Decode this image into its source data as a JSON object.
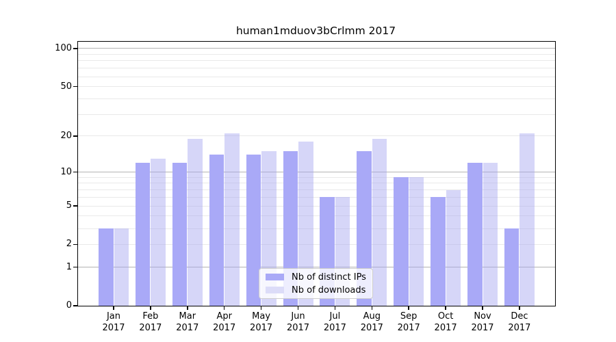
{
  "chart_data": {
    "type": "bar",
    "title": "human1mduov3bCrlmm 2017",
    "categories": [
      "Jan",
      "Feb",
      "Mar",
      "Apr",
      "May",
      "Jun",
      "Jul",
      "Aug",
      "Sep",
      "Oct",
      "Nov",
      "Dec"
    ],
    "year": "2017",
    "series": [
      {
        "name": "Nb of distinct IPs",
        "values": [
          3,
          12,
          12,
          14,
          14,
          15,
          6,
          15,
          9,
          6,
          12,
          3
        ],
        "color": "#a9a9f7",
        "fill": "#a9a9f7"
      },
      {
        "name": "Nb of downloads",
        "values": [
          3,
          13,
          19,
          21,
          15,
          18,
          6,
          19,
          9,
          7,
          12,
          21
        ],
        "color": "#dcdcf8",
        "fill": "rgba(163,163,240,0.45)"
      }
    ],
    "ylabel": "",
    "xlabel": "",
    "yscale": "log10(1+v)",
    "ylim": [
      0,
      115
    ],
    "yticks": [
      0,
      1,
      2,
      5,
      10,
      20,
      50,
      100
    ],
    "grid": "on",
    "grid_major_at": [
      1,
      10,
      100
    ],
    "grid_minor_at": [
      2,
      3,
      4,
      5,
      6,
      7,
      8,
      9,
      20,
      30,
      40,
      50,
      60,
      70,
      80,
      90
    ],
    "legend_position": "bottom-center",
    "colors": {
      "grid_major": "#b3b3b3",
      "grid_minor": "#e9e9e9",
      "axis": "#000000",
      "legend_border": "#cccccc",
      "legend_bg": "rgba(255,255,255,0.8)"
    }
  }
}
